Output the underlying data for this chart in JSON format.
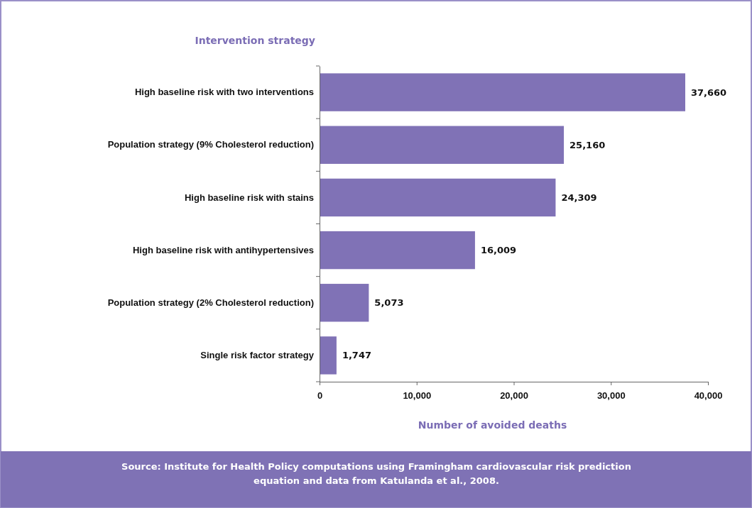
{
  "chart_data": {
    "type": "bar",
    "orientation": "horizontal",
    "ylabel": "Intervention strategy",
    "xlabel": "Number of avoided deaths",
    "categories": [
      "High baseline risk with two interventions",
      "Population strategy (9% Cholesterol reduction)",
      "High baseline risk with stains",
      "High baseline risk with antihypertensives",
      "Population strategy (2% Cholesterol reduction)",
      "Single risk factor strategy"
    ],
    "values": [
      37660,
      25160,
      24309,
      16009,
      5073,
      1747
    ],
    "color": "#8072b6",
    "xlim": [
      0,
      40000
    ],
    "xticks": [
      {
        "value": 0,
        "label": "0"
      },
      {
        "value": 10000,
        "label": "10,000"
      },
      {
        "value": 20000,
        "label": "20,000"
      },
      {
        "value": 30000,
        "label": "30,000"
      },
      {
        "value": 40000,
        "label": "40,000"
      }
    ],
    "value_labels": [
      "37,660",
      "25,160",
      "24,309",
      "16,009",
      "5,073",
      "1,747"
    ],
    "annotations": [
      "Source: Institute for Health Policy computations using Framingham cardiovascular risk prediction equation and data from Katulanda et al., 2008."
    ]
  }
}
